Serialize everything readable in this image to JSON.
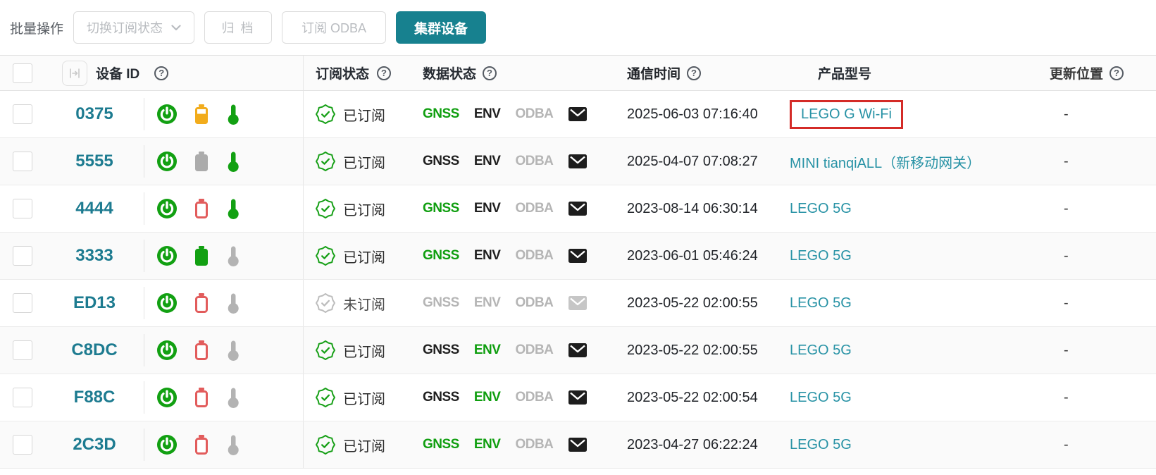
{
  "toolbar": {
    "batch_label": "批量操作",
    "dropdown_label": "切换订阅状态",
    "archive_label": "归 档",
    "subscribe_odba_label": "订阅 ODBA",
    "cluster_label": "集群设备"
  },
  "headers": {
    "device_id": "设备 ID",
    "subscription": "订阅状态",
    "data_status": "数据状态",
    "comm_time": "通信时间",
    "product": "产品型号",
    "location": "更新位置"
  },
  "data_labels": {
    "gnss": "GNSS",
    "env": "ENV",
    "odba": "ODBA"
  },
  "help_glyph": "?",
  "colors": {
    "accent_teal": "#17818F",
    "link_teal": "#2792A5",
    "device_id_teal": "#1D7B90",
    "status_green": "#12A012",
    "battery_yellow": "#F2AC1C",
    "alert_red": "#E25C5C",
    "inactive_gray": "#B5B5B5",
    "highlight_red": "#D42B27"
  },
  "rows": [
    {
      "id": "0375",
      "power": "on",
      "battery": "medium-yellow",
      "thermometer": "green",
      "subscription": "已订阅",
      "subscribed": true,
      "gnss": "green",
      "env": "dark",
      "odba": "gray",
      "mail": "dark",
      "time": "2025-06-03 07:16:40",
      "product": "LEGO G Wi-Fi",
      "product_highlighted": true,
      "location": "-"
    },
    {
      "id": "5555",
      "power": "on",
      "battery": "full-gray",
      "thermometer": "green",
      "subscription": "已订阅",
      "subscribed": true,
      "gnss": "dark",
      "env": "dark",
      "odba": "gray",
      "mail": "dark",
      "time": "2025-04-07 07:08:27",
      "product": "MINI tianqiALL（新移动网关）",
      "product_highlighted": false,
      "location": "-"
    },
    {
      "id": "4444",
      "power": "on",
      "battery": "empty-red",
      "thermometer": "green",
      "subscription": "已订阅",
      "subscribed": true,
      "gnss": "green",
      "env": "dark",
      "odba": "gray",
      "mail": "dark",
      "time": "2023-08-14 06:30:14",
      "product": "LEGO 5G",
      "product_highlighted": false,
      "location": "-"
    },
    {
      "id": "3333",
      "power": "on",
      "battery": "full-green",
      "thermometer": "gray",
      "subscription": "已订阅",
      "subscribed": true,
      "gnss": "green",
      "env": "dark",
      "odba": "gray",
      "mail": "dark",
      "time": "2023-06-01 05:46:24",
      "product": "LEGO 5G",
      "product_highlighted": false,
      "location": "-"
    },
    {
      "id": "ED13",
      "power": "on",
      "battery": "empty-red",
      "thermometer": "gray",
      "subscription": "未订阅",
      "subscribed": false,
      "gnss": "gray",
      "env": "gray",
      "odba": "gray",
      "mail": "gray",
      "time": "2023-05-22 02:00:55",
      "product": "LEGO 5G",
      "product_highlighted": false,
      "location": "-"
    },
    {
      "id": "C8DC",
      "power": "on",
      "battery": "empty-red",
      "thermometer": "gray",
      "subscription": "已订阅",
      "subscribed": true,
      "gnss": "dark",
      "env": "green",
      "odba": "gray",
      "mail": "dark",
      "time": "2023-05-22 02:00:55",
      "product": "LEGO 5G",
      "product_highlighted": false,
      "location": "-"
    },
    {
      "id": "F88C",
      "power": "on",
      "battery": "empty-red",
      "thermometer": "gray",
      "subscription": "已订阅",
      "subscribed": true,
      "gnss": "dark",
      "env": "green",
      "odba": "gray",
      "mail": "dark",
      "time": "2023-05-22 02:00:54",
      "product": "LEGO 5G",
      "product_highlighted": false,
      "location": "-"
    },
    {
      "id": "2C3D",
      "power": "on",
      "battery": "empty-red",
      "thermometer": "gray",
      "subscription": "已订阅",
      "subscribed": true,
      "gnss": "green",
      "env": "green",
      "odba": "gray",
      "mail": "dark",
      "time": "2023-04-27 06:22:24",
      "product": "LEGO 5G",
      "product_highlighted": false,
      "location": "-"
    }
  ]
}
